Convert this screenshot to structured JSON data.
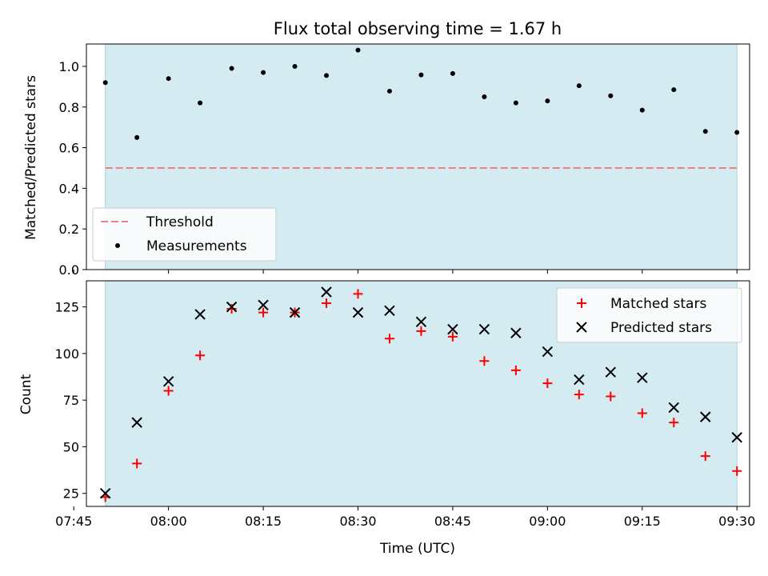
{
  "chart_data": [
    {
      "type": "scatter",
      "title": "Flux total observing time = 1.67 h",
      "xlabel": "",
      "ylabel": "Matched/Predicted stars",
      "x_range": [
        "07:47",
        "09:32"
      ],
      "ylim": [
        0,
        1.11
      ],
      "yticks": [
        0.0,
        0.2,
        0.4,
        0.6,
        0.8,
        1.0
      ],
      "ytick_labels": [
        "0.0",
        "0.2",
        "0.4",
        "0.6",
        "0.8",
        "1.0"
      ],
      "shaded_span": [
        "07:50",
        "09:30"
      ],
      "threshold": {
        "name": "Threshold",
        "value": 0.5,
        "color": "#f08080"
      },
      "legend_placement": "lower-left",
      "series": [
        {
          "name": "Measurements",
          "marker": "dot",
          "color": "#000000",
          "x": [
            "07:50",
            "07:55",
            "08:00",
            "08:05",
            "08:10",
            "08:15",
            "08:20",
            "08:25",
            "08:30",
            "08:35",
            "08:40",
            "08:45",
            "08:50",
            "08:55",
            "09:00",
            "09:05",
            "09:10",
            "09:15",
            "09:20",
            "09:25",
            "09:30"
          ],
          "y": [
            0.92,
            0.65,
            0.94,
            0.82,
            0.99,
            0.97,
            1.0,
            0.955,
            1.08,
            0.878,
            0.958,
            0.965,
            0.85,
            0.82,
            0.83,
            0.905,
            0.855,
            0.785,
            0.885,
            0.68,
            0.675
          ]
        }
      ]
    },
    {
      "type": "scatter",
      "title": "",
      "xlabel": "Time (UTC)",
      "ylabel": "Count",
      "x_range": [
        "07:47",
        "09:32"
      ],
      "ylim": [
        18,
        139
      ],
      "yticks": [
        25,
        50,
        75,
        100,
        125
      ],
      "ytick_labels": [
        "25",
        "50",
        "75",
        "100",
        "125"
      ],
      "xticks": [
        "07:45",
        "08:00",
        "08:15",
        "08:30",
        "08:45",
        "09:00",
        "09:15",
        "09:30"
      ],
      "shaded_span": [
        "07:50",
        "09:30"
      ],
      "legend_placement": "upper-right",
      "series": [
        {
          "name": "Matched stars",
          "marker": "plus",
          "color": "#ff0000",
          "x": [
            "07:50",
            "07:55",
            "08:00",
            "08:05",
            "08:10",
            "08:15",
            "08:20",
            "08:25",
            "08:30",
            "08:35",
            "08:40",
            "08:45",
            "08:50",
            "08:55",
            "09:00",
            "09:05",
            "09:10",
            "09:15",
            "09:20",
            "09:25",
            "09:30"
          ],
          "y": [
            23,
            41,
            80,
            99,
            124,
            122,
            122,
            127,
            132,
            108,
            112,
            109,
            96,
            91,
            84,
            78,
            77,
            68,
            63,
            45,
            37
          ]
        },
        {
          "name": "Predicted stars",
          "marker": "x",
          "color": "#000000",
          "x": [
            "07:50",
            "07:55",
            "08:00",
            "08:05",
            "08:10",
            "08:15",
            "08:20",
            "08:25",
            "08:30",
            "08:35",
            "08:40",
            "08:45",
            "08:50",
            "08:55",
            "09:00",
            "09:05",
            "09:10",
            "09:15",
            "09:20",
            "09:25",
            "09:30"
          ],
          "y": [
            25,
            63,
            85,
            121,
            125,
            126,
            122,
            133,
            122,
            123,
            117,
            113,
            113,
            111,
            101,
            86,
            90,
            87,
            71,
            66,
            55
          ]
        }
      ]
    }
  ]
}
